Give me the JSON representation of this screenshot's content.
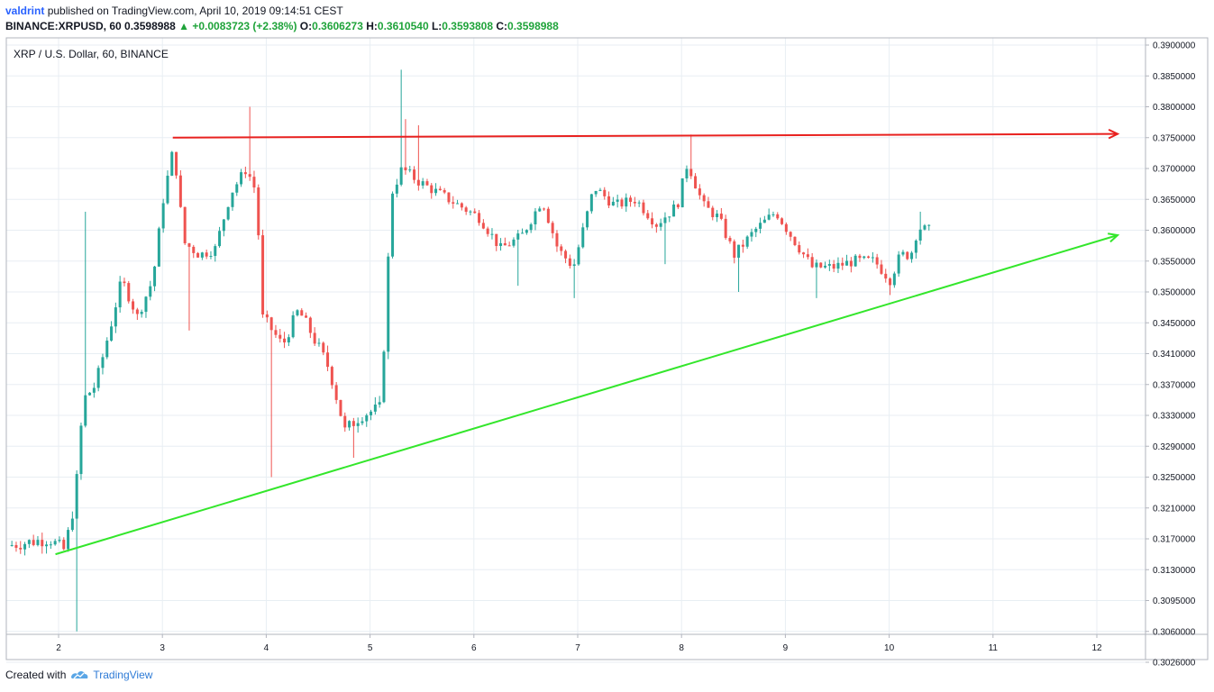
{
  "header": {
    "author": "valdrint",
    "published_text": "published on TradingView.com, April 10, 2019 09:14:51 CEST",
    "symbol": "BINANCE:XRPUSD, 60",
    "last": "0.3598988",
    "arrow": "▲",
    "change": "+0.0083723 (+2.38%)",
    "o_label": "O:",
    "o_value": "0.3606273",
    "h_label": "H:",
    "h_value": "0.3610540",
    "l_label": "L:",
    "l_value": "0.3593808",
    "c_label": "C:",
    "c_value": "0.3598988"
  },
  "footer": {
    "created_with": "Created with",
    "brand": "TradingView"
  },
  "colors": {
    "up": "#26a69a",
    "down": "#ef5350",
    "resistance": "#e8211f",
    "support": "#33e62b",
    "grid": "#e8eef3",
    "positive_text": "#1fa33a",
    "author": "#2962ff"
  },
  "chart_data": {
    "type": "candlestick",
    "title": "XRP / U.S. Dollar, 60, BINANCE",
    "x_ticks": [
      "2",
      "3",
      "4",
      "5",
      "6",
      "7",
      "8",
      "9",
      "10",
      "11",
      "12"
    ],
    "y_ticks": [
      "0.3900000",
      "0.3850000",
      "0.3800000",
      "0.3750000",
      "0.3700000",
      "0.3650000",
      "0.3600000",
      "0.3550000",
      "0.3500000",
      "0.3450000",
      "0.3410000",
      "0.3370000",
      "0.3330000",
      "0.3290000",
      "0.3250000",
      "0.3210000",
      "0.3170000",
      "0.3130000",
      "0.3095000",
      "0.3060000",
      "0.3026000"
    ],
    "xlim": [
      1.5,
      12.5
    ],
    "grid": true,
    "price_anchors": [
      [
        1.5,
        0.316
      ],
      [
        1.95,
        0.317
      ],
      [
        2.1,
        0.3155
      ],
      [
        2.2,
        0.322
      ],
      [
        2.28,
        0.335
      ],
      [
        2.4,
        0.337
      ],
      [
        2.55,
        0.345
      ],
      [
        2.65,
        0.352
      ],
      [
        2.8,
        0.346
      ],
      [
        2.95,
        0.352
      ],
      [
        3.05,
        0.365
      ],
      [
        3.15,
        0.3735
      ],
      [
        3.25,
        0.358
      ],
      [
        3.4,
        0.356
      ],
      [
        3.55,
        0.357
      ],
      [
        3.7,
        0.366
      ],
      [
        3.85,
        0.37
      ],
      [
        3.95,
        0.366
      ],
      [
        4.0,
        0.346
      ],
      [
        4.1,
        0.344
      ],
      [
        4.2,
        0.342
      ],
      [
        4.35,
        0.347
      ],
      [
        4.5,
        0.343
      ],
      [
        4.65,
        0.339
      ],
      [
        4.8,
        0.331
      ],
      [
        4.95,
        0.333
      ],
      [
        5.15,
        0.334
      ],
      [
        5.25,
        0.366
      ],
      [
        5.35,
        0.37
      ],
      [
        5.5,
        0.368
      ],
      [
        5.7,
        0.366
      ],
      [
        5.9,
        0.364
      ],
      [
        6.1,
        0.362
      ],
      [
        6.3,
        0.357
      ],
      [
        6.5,
        0.359
      ],
      [
        6.7,
        0.365
      ],
      [
        6.85,
        0.357
      ],
      [
        7.0,
        0.354
      ],
      [
        7.2,
        0.367
      ],
      [
        7.4,
        0.364
      ],
      [
        7.6,
        0.365
      ],
      [
        7.8,
        0.361
      ],
      [
        8.0,
        0.364
      ],
      [
        8.1,
        0.371
      ],
      [
        8.25,
        0.364
      ],
      [
        8.4,
        0.362
      ],
      [
        8.55,
        0.356
      ],
      [
        8.75,
        0.36
      ],
      [
        8.95,
        0.363
      ],
      [
        9.1,
        0.359
      ],
      [
        9.3,
        0.354
      ],
      [
        9.5,
        0.354
      ],
      [
        9.7,
        0.355
      ],
      [
        9.9,
        0.355
      ],
      [
        10.05,
        0.352
      ],
      [
        10.15,
        0.356
      ],
      [
        10.25,
        0.356
      ],
      [
        10.32,
        0.3605
      ],
      [
        10.4,
        0.36
      ]
    ],
    "spikes": [
      [
        2.17,
        0.306,
        "low"
      ],
      [
        2.25,
        0.363,
        "high"
      ],
      [
        3.25,
        0.344,
        "low"
      ],
      [
        3.85,
        0.38,
        "high"
      ],
      [
        4.05,
        0.325,
        "low"
      ],
      [
        4.85,
        0.3275,
        "low"
      ],
      [
        5.28,
        0.386,
        "high"
      ],
      [
        5.35,
        0.378,
        "high"
      ],
      [
        5.45,
        0.377,
        "high"
      ],
      [
        6.42,
        0.351,
        "low"
      ],
      [
        6.95,
        0.349,
        "low"
      ],
      [
        7.85,
        0.3545,
        "low"
      ],
      [
        8.1,
        0.3755,
        "high"
      ],
      [
        8.55,
        0.35,
        "low"
      ],
      [
        9.3,
        0.349,
        "low"
      ],
      [
        10.02,
        0.3495,
        "low"
      ],
      [
        10.3,
        0.363,
        "high"
      ]
    ],
    "annotations": [
      {
        "name": "resistance-line",
        "type": "arrow",
        "color": "#e8211f",
        "from": [
          3.1,
          0.375
        ],
        "to": [
          12.2,
          0.3756
        ]
      },
      {
        "name": "support-line",
        "type": "arrow",
        "color": "#33e62b",
        "from": [
          1.97,
          0.315
        ],
        "to": [
          12.2,
          0.3592
        ]
      }
    ]
  }
}
